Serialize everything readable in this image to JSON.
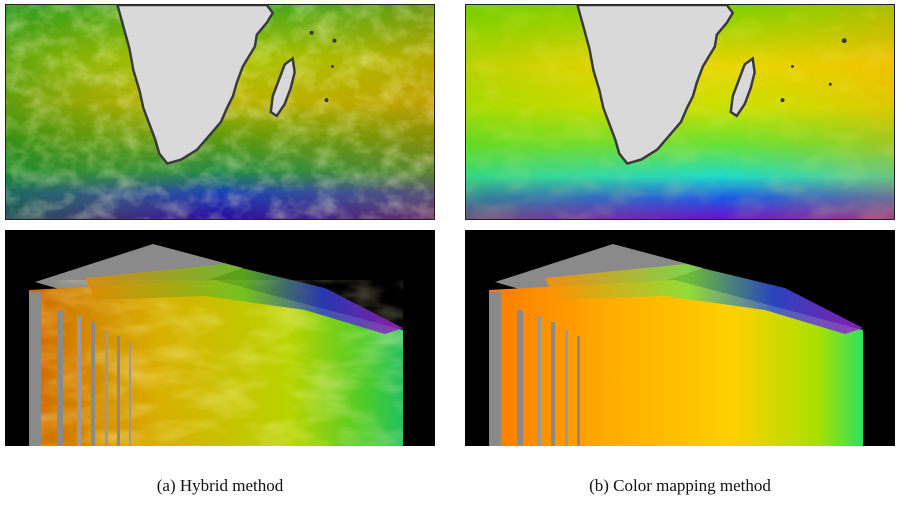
{
  "figure": {
    "panels": [
      {
        "id": "a",
        "caption": "(a) Hybrid method"
      },
      {
        "id": "b",
        "caption": "(b) Color mapping method"
      }
    ]
  },
  "colors": {
    "land": "#d9d9d9",
    "coast": "#3a3a3a",
    "background": "#000000",
    "wall": "#8a8a8a"
  }
}
